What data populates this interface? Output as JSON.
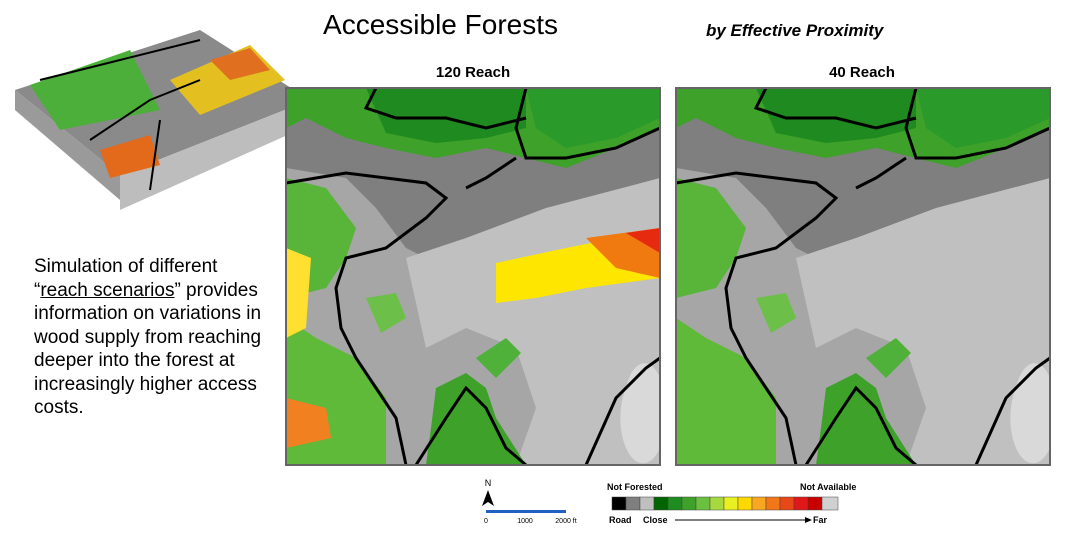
{
  "header": {
    "title": "Accessible Forests",
    "subtitle": "by Effective Proximity"
  },
  "panels": [
    {
      "title": "120 Reach"
    },
    {
      "title": "40 Reach"
    }
  ],
  "description": {
    "before": "Simulation of different “",
    "underlined": "reach scenarios",
    "after": "” provides information on variations in wood supply from reaching deeper into the forest at increasingly higher access costs."
  },
  "legend": {
    "not_forested": "Not Forested",
    "not_available": "Not Available",
    "road": "Road",
    "close": "Close",
    "far": "Far"
  },
  "scale_bar": {
    "north": "N",
    "labels": [
      "0",
      "1000",
      "2000 ft"
    ]
  }
}
